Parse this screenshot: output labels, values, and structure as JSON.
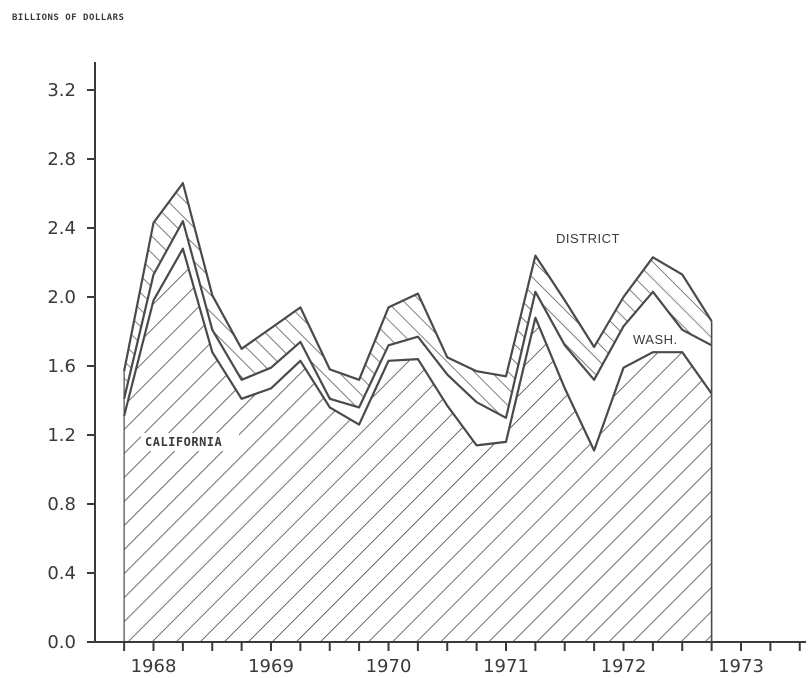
{
  "chart_data": {
    "type": "area",
    "stacked": true,
    "title": "",
    "ylabel": "BILLIONS OF DOLLARS",
    "xlabel": "",
    "ylim": [
      0,
      3.3
    ],
    "yticks": [
      "0.0",
      "0.4",
      "0.8",
      "1.2",
      "1.6",
      "2.0",
      "2.4",
      "2.8",
      "3.2"
    ],
    "xticks": [
      "1968",
      "1969",
      "1970",
      "1971",
      "1972",
      "1973"
    ],
    "x": [
      1967.75,
      1968.0,
      1968.25,
      1968.5,
      1968.75,
      1969.0,
      1969.25,
      1969.5,
      1969.75,
      1970.0,
      1970.25,
      1970.5,
      1970.75,
      1971.0,
      1971.25,
      1971.5,
      1971.75,
      1972.0,
      1972.25,
      1972.5,
      1972.75
    ],
    "series": [
      {
        "name": "CALIFORNIA",
        "cumulative": [
          1.31,
          1.98,
          2.28,
          1.68,
          1.41,
          1.47,
          1.63,
          1.36,
          1.26,
          1.63,
          1.64,
          1.37,
          1.14,
          1.16,
          1.88,
          1.47,
          1.11,
          1.59,
          1.68,
          1.68,
          1.44
        ],
        "hatch": "diagonal"
      },
      {
        "name": "WASH.",
        "cumulative": [
          1.41,
          2.13,
          2.44,
          1.81,
          1.52,
          1.59,
          1.74,
          1.41,
          1.36,
          1.72,
          1.77,
          1.55,
          1.39,
          1.3,
          2.03,
          1.72,
          1.52,
          1.83,
          2.03,
          1.81,
          1.72
        ],
        "hatch": "none"
      },
      {
        "name": "DISTRICT",
        "cumulative": [
          1.57,
          2.43,
          2.66,
          2.01,
          1.7,
          1.82,
          1.94,
          1.58,
          1.52,
          1.94,
          2.02,
          1.65,
          1.57,
          1.54,
          2.24,
          1.98,
          1.71,
          2.0,
          2.23,
          2.13,
          1.86
        ],
        "hatch": "diagonal-reverse"
      }
    ],
    "grid": false,
    "legend": "none"
  }
}
